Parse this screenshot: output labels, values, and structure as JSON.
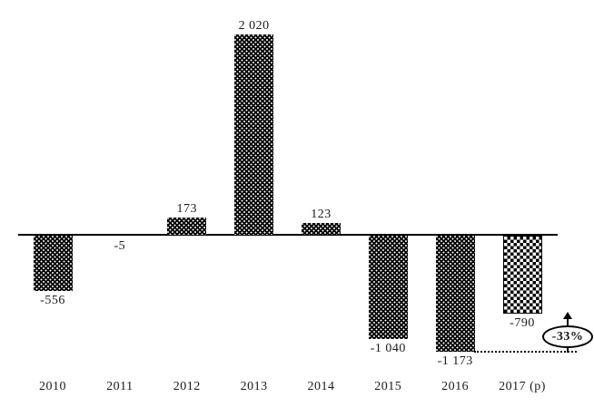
{
  "chart_data": {
    "type": "bar",
    "categories": [
      "2010",
      "2011",
      "2012",
      "2013",
      "2014",
      "2015",
      "2016",
      "2017 (p)"
    ],
    "values": [
      -556,
      -5,
      173,
      2020,
      123,
      -1040,
      -1173,
      -790
    ],
    "value_labels": [
      "-556",
      "-5",
      "173",
      "2 020",
      "123",
      "-1 040",
      "-1 173",
      "-790"
    ],
    "bar_styles": [
      "dots-dark",
      "dots-dark",
      "dots-dark",
      "dots-dark",
      "dots-dark",
      "dots-dark",
      "dots-dark",
      "checker-light"
    ],
    "title": "",
    "xlabel": "",
    "ylabel": "",
    "ylim": [
      -1300,
      2100
    ],
    "grid": false,
    "legend": "none",
    "annotation": {
      "text": "-33%",
      "shape": "ellipse",
      "arrow_direction": "up",
      "connector": "dotted line from bottom of 2016 bar to annotation"
    }
  },
  "colors": {
    "bar_dark": "#000000",
    "bar_dot": "#ffffff",
    "background": "#ffffff",
    "text": "#1a1a1a",
    "axis": "#000000"
  }
}
